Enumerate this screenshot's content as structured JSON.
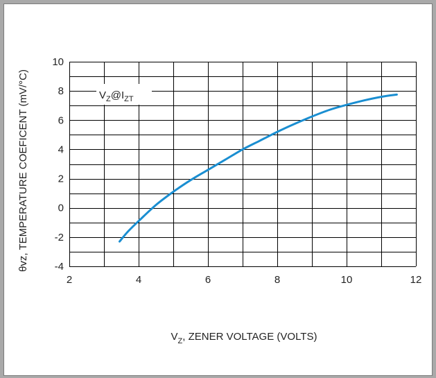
{
  "chart_data": {
    "type": "line",
    "xlabel": {
      "main": "V",
      "sub": "Z",
      "rest": ", ZENER VOLTAGE (VOLTS)"
    },
    "ylabel": "θvz, TEMPERATURE COEFICENT (mV/°C)",
    "xlim": [
      2,
      12
    ],
    "ylim": [
      -4,
      10
    ],
    "x_ticks": [
      "2",
      "4",
      "6",
      "8",
      "10",
      "12"
    ],
    "y_ticks": [
      "-4",
      "-2",
      "0",
      "2",
      "4",
      "6",
      "8",
      "10"
    ],
    "grid": true,
    "annotation": {
      "v": "V",
      "vsub": "Z",
      "at": "@I",
      "isub": "ZT"
    },
    "line_color": "#1a8ed1",
    "grid_color": "#000000",
    "series": [
      {
        "x": [
          3.45,
          3.7,
          4.0,
          4.5,
          5.0,
          5.5,
          6.0,
          6.5,
          7.0,
          7.5,
          8.0,
          8.5,
          9.0,
          9.5,
          10.0,
          10.5,
          11.0,
          11.45
        ],
        "y": [
          -2.3,
          -1.6,
          -0.9,
          0.2,
          1.1,
          1.9,
          2.6,
          3.3,
          4.0,
          4.6,
          5.2,
          5.75,
          6.25,
          6.7,
          7.05,
          7.35,
          7.6,
          7.75
        ]
      }
    ]
  }
}
